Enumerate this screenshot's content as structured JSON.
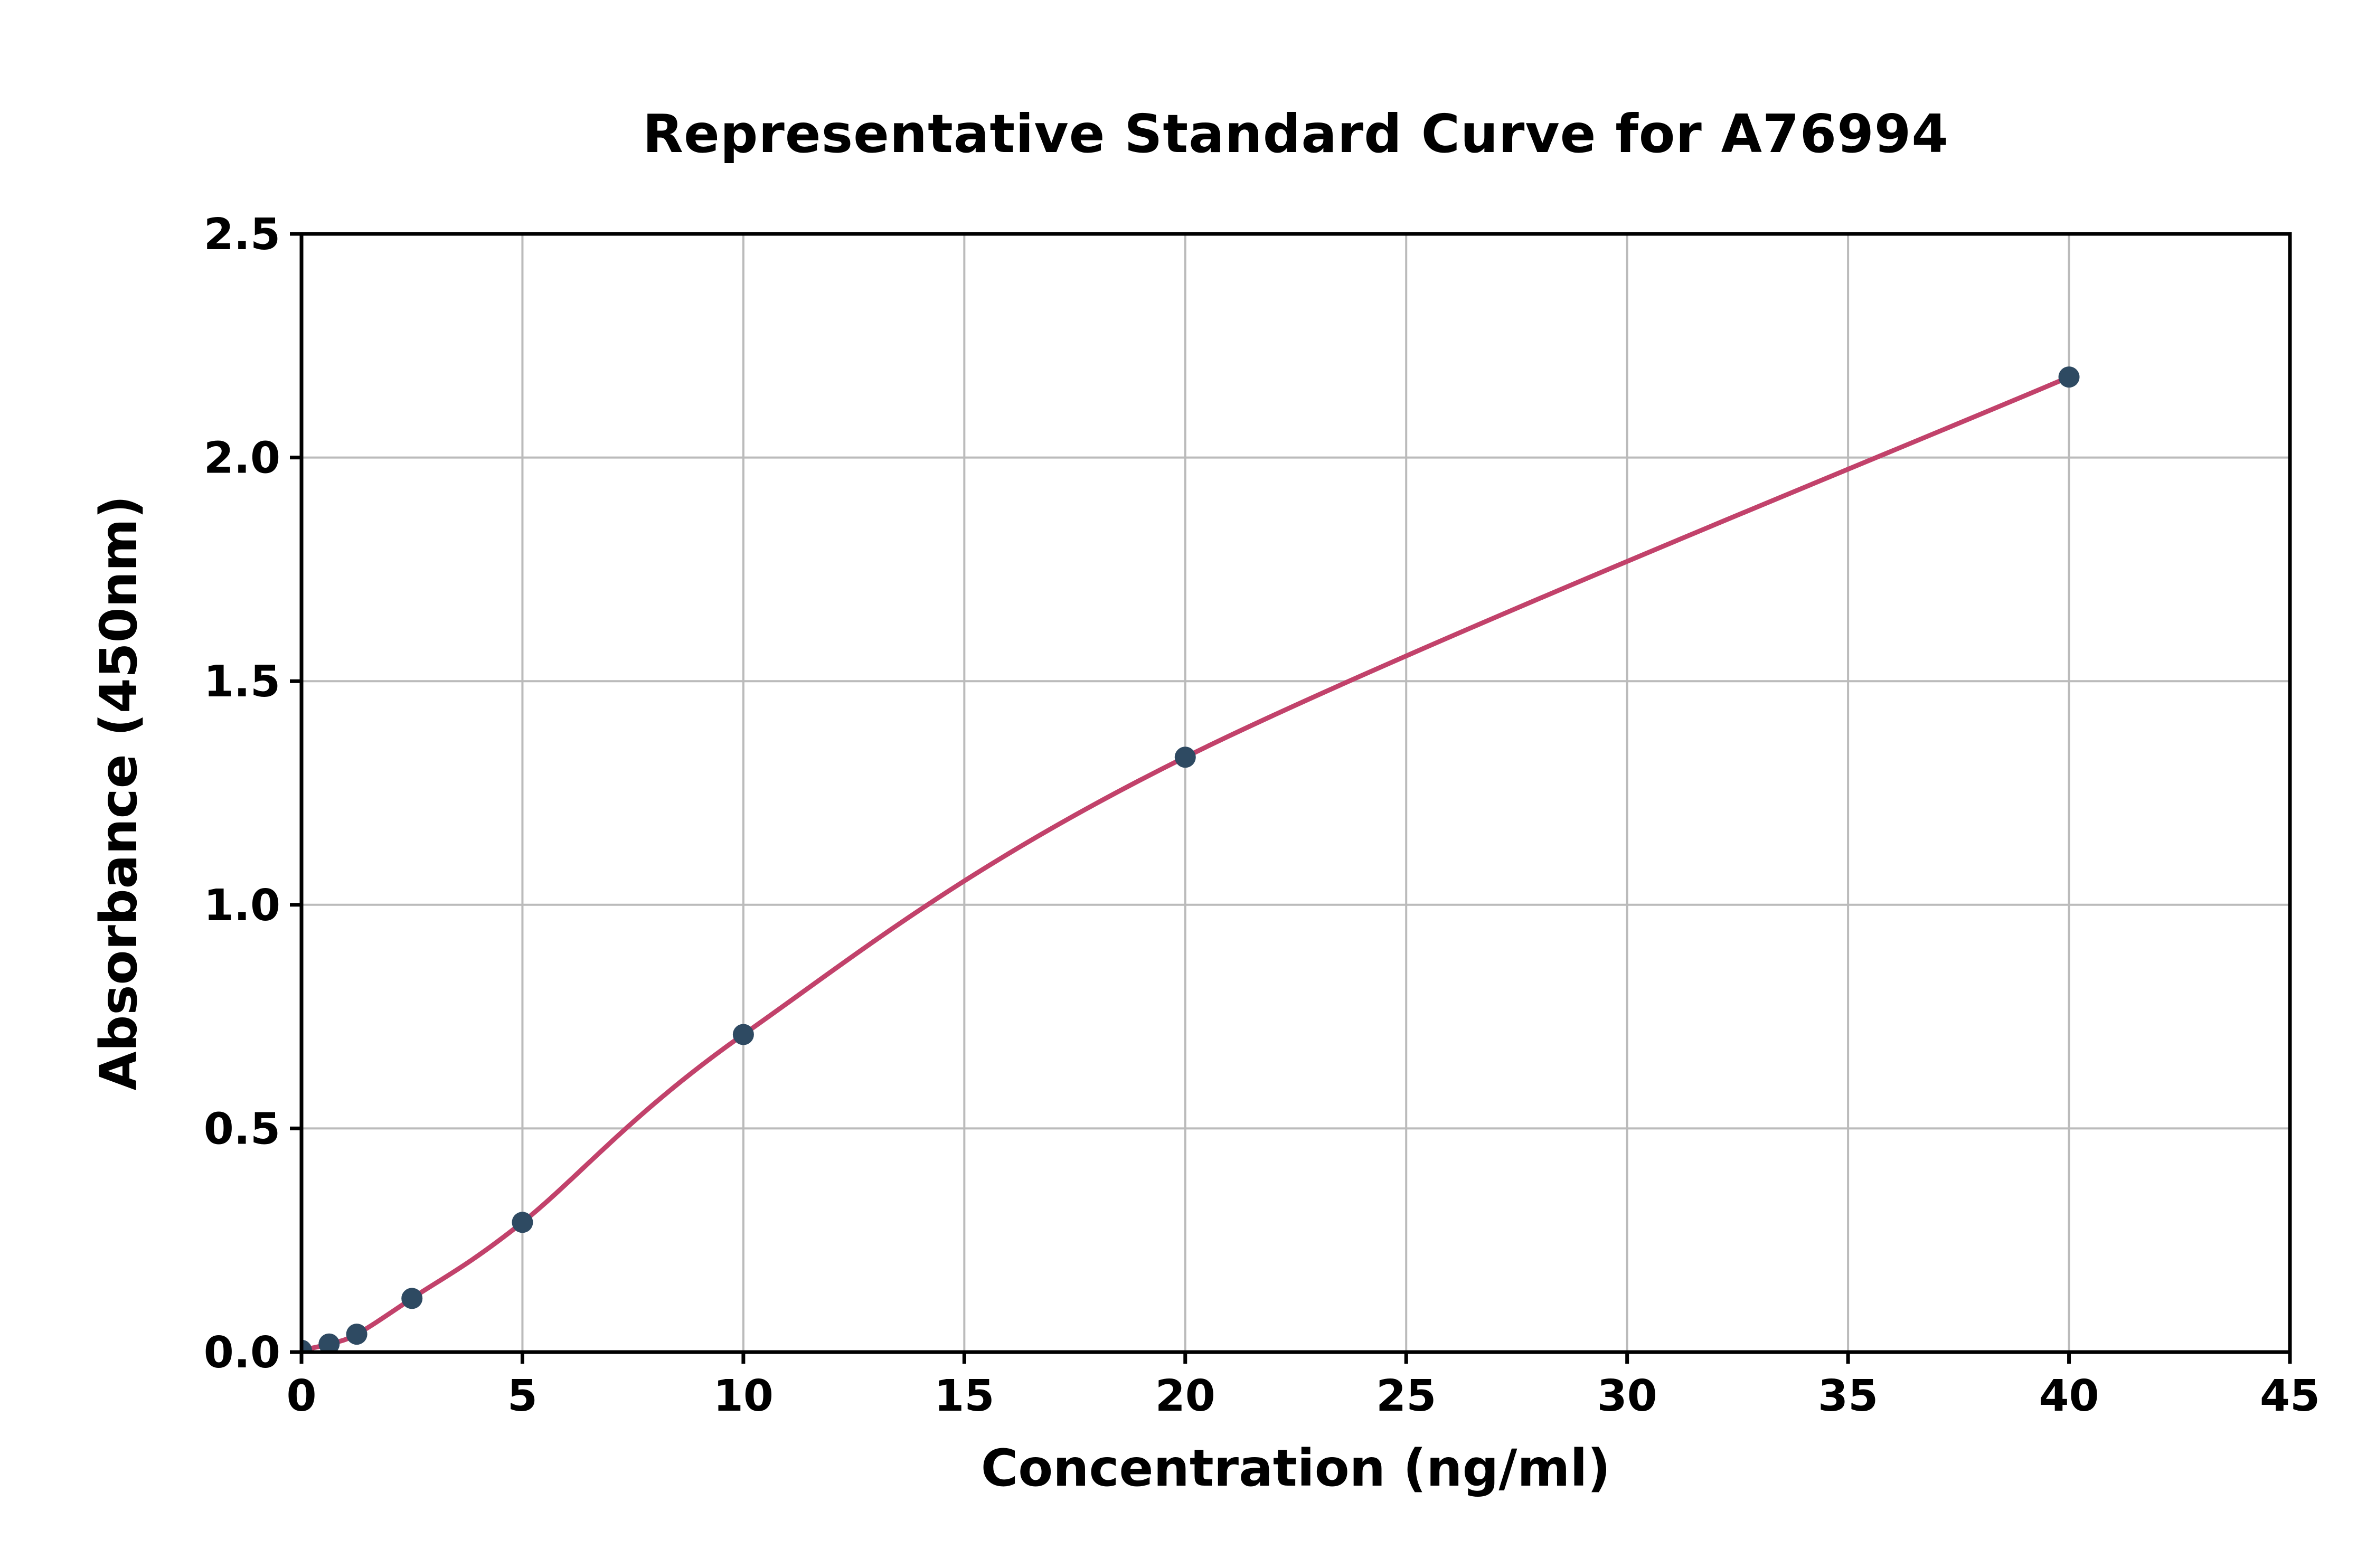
{
  "chart_data": {
    "type": "scatter",
    "title": "Representative Standard Curve for A76994",
    "xlabel": "Concentration (ng/ml)",
    "ylabel": "Absorbance (450nm)",
    "xlim": [
      0,
      45
    ],
    "ylim": [
      0,
      2.5
    ],
    "xticks": [
      0,
      5,
      10,
      15,
      20,
      25,
      30,
      35,
      40,
      45
    ],
    "xtick_labels": [
      "0",
      "5",
      "10",
      "15",
      "20",
      "25",
      "30",
      "35",
      "40",
      "45"
    ],
    "yticks": [
      0.0,
      0.5,
      1.0,
      1.5,
      2.0,
      2.5
    ],
    "ytick_labels": [
      "0.0",
      "0.5",
      "1.0",
      "1.5",
      "2.0",
      "2.5"
    ],
    "grid": true,
    "legend": "none",
    "points": [
      [
        0,
        0.004
      ],
      [
        0.625,
        0.018
      ],
      [
        1.25,
        0.04
      ],
      [
        2.5,
        0.12
      ],
      [
        5,
        0.29
      ],
      [
        10,
        0.71
      ],
      [
        20,
        1.33
      ],
      [
        40,
        2.18
      ]
    ],
    "fit_curve_through_points": true,
    "colors": {
      "points": "#2e4a62",
      "curve": "#c2426b",
      "grid": "#bbbbbb",
      "axis": "#000000",
      "background": "#ffffff"
    }
  }
}
